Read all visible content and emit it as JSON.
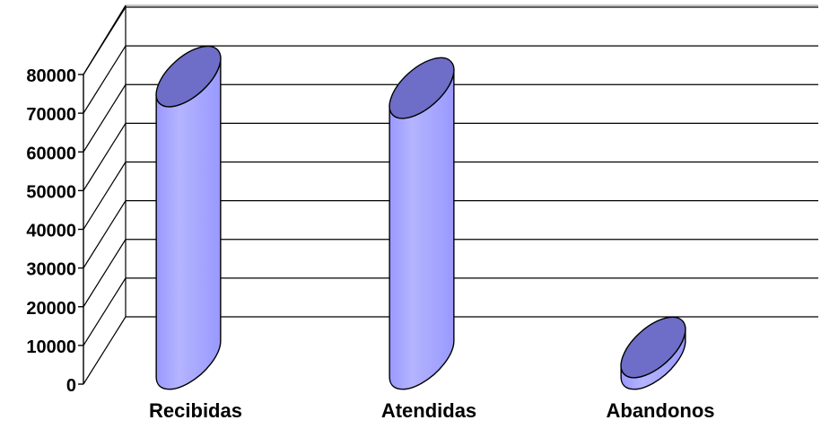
{
  "chart_data": {
    "type": "bar",
    "style": "3d-cylinder",
    "categories": [
      "Recibidas",
      "Atendidas",
      "Abandonos"
    ],
    "series": [
      {
        "values": [
          73000,
          70000,
          3000
        ]
      }
    ],
    "title": "",
    "xlabel": "",
    "ylabel": "",
    "ylim": [
      0,
      80000
    ],
    "y_ticks": [
      "0",
      "10000",
      "20000",
      "30000",
      "40000",
      "50000",
      "60000",
      "70000",
      "80000"
    ],
    "grid": true,
    "legend": "none",
    "colors": {
      "bar_side": "#9999ff",
      "bar_side_highlight": "#b4b4ff",
      "bar_top": "#6e6ec8",
      "gridline": "#000000",
      "background": "#ffffff"
    }
  }
}
